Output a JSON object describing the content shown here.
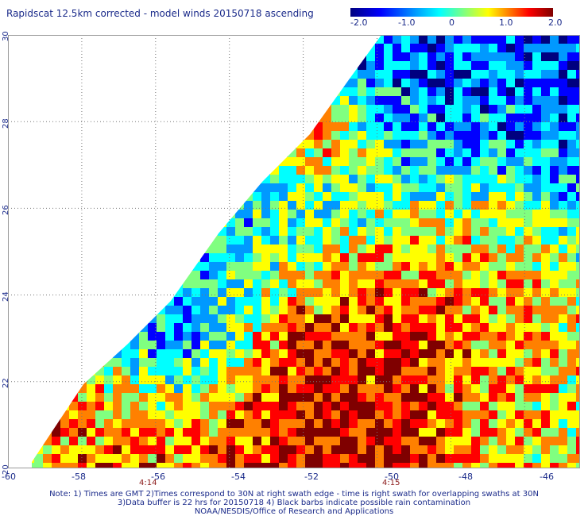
{
  "title": "Rapidscat 12.5km corrected - model winds 20150718 ascending",
  "colorbar": {
    "ticks": [
      "-2.0",
      "-1.0",
      "0",
      "1.0",
      "2.0"
    ],
    "range": [
      -2.0,
      2.0
    ],
    "colors": [
      "#00007f",
      "#0000ff",
      "#0099ff",
      "#00ffff",
      "#80ff80",
      "#ffff00",
      "#ff8000",
      "#ff0000",
      "#7f0000"
    ]
  },
  "map": {
    "lat_labels": [
      "30",
      "28",
      "26",
      "24",
      "22",
      "20"
    ],
    "lon_labels": [
      "-60",
      "-58",
      "-56",
      "-54",
      "-52",
      "-50",
      "-48",
      "-46"
    ],
    "time_labels": [
      "4:14",
      "4:15"
    ],
    "lat_range": [
      20,
      30
    ],
    "lon_range": [
      -60,
      -44.5
    ]
  },
  "notes": {
    "line1": "Note: 1) Times are GMT 2)Times correspond to 30N at right swath edge - time is right swath for overlapping swaths at 30N",
    "line2": "3)Data buffer is 22 hrs for 20150718 4) Black barbs indicate possible rain contamination",
    "line3": "NOAA/NESDIS/Office of Research and Applications"
  }
}
